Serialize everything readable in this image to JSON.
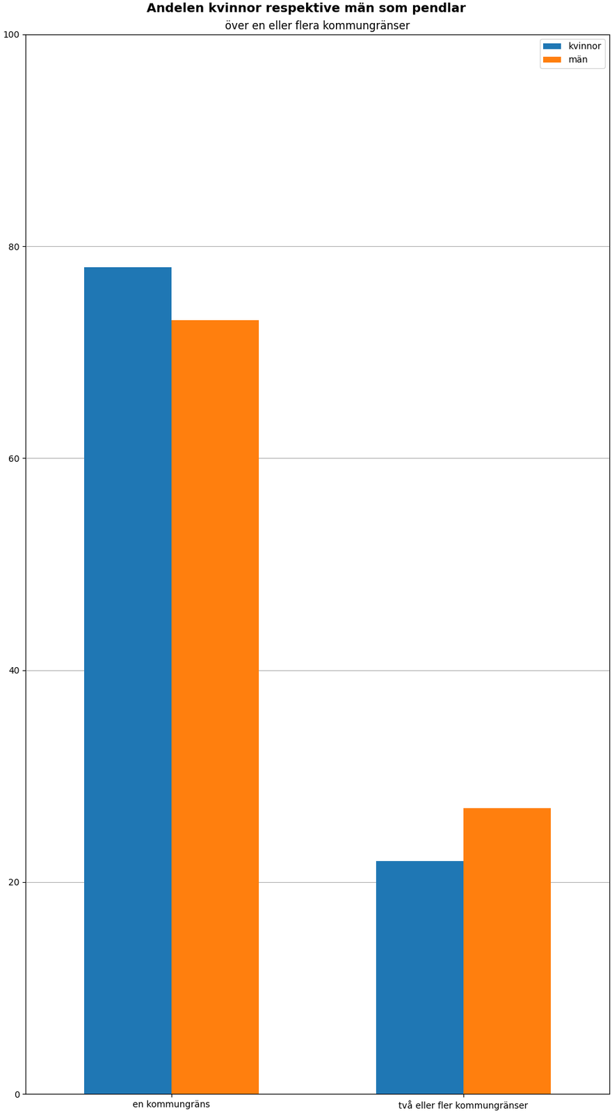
{
  "chart_data": {
    "type": "bar",
    "title": "Andelen kvinnor respektive män som pendlar",
    "subtitle": "över en eller flera kommungränser",
    "categories": [
      "en kommungräns",
      "två eller fler kommungränser"
    ],
    "series": [
      {
        "name": "kvinnor",
        "values": [
          78,
          22
        ]
      },
      {
        "name": "män",
        "values": [
          73,
          27
        ]
      }
    ],
    "ylim": [
      0,
      100
    ],
    "yticks": [
      0,
      20,
      40,
      60,
      80,
      100
    ],
    "grid": "y",
    "legend": "upper right"
  }
}
